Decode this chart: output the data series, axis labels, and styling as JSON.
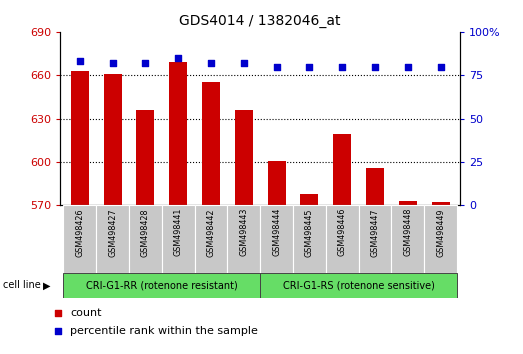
{
  "title": "GDS4014 / 1382046_at",
  "samples": [
    "GSM498426",
    "GSM498427",
    "GSM498428",
    "GSM498441",
    "GSM498442",
    "GSM498443",
    "GSM498444",
    "GSM498445",
    "GSM498446",
    "GSM498447",
    "GSM498448",
    "GSM498449"
  ],
  "bar_values": [
    663,
    661,
    636,
    669,
    655,
    636,
    601,
    578,
    619,
    596,
    573,
    572
  ],
  "percentile_values": [
    83,
    82,
    82,
    85,
    82,
    82,
    80,
    80,
    80,
    80,
    80,
    80
  ],
  "ylim_left": [
    570,
    690
  ],
  "ylim_right": [
    0,
    100
  ],
  "yticks_left": [
    570,
    600,
    630,
    660,
    690
  ],
  "yticks_right": [
    0,
    25,
    50,
    75,
    100
  ],
  "bar_color": "#cc0000",
  "dot_color": "#0000cc",
  "cell_line_bg": "#66dd66",
  "tick_area_bg": "#c8c8c8",
  "group1_label": "CRI-G1-RR (rotenone resistant)",
  "group2_label": "CRI-G1-RS (rotenone sensitive)",
  "group1_count": 6,
  "group2_count": 6,
  "legend_count_label": "count",
  "legend_pct_label": "percentile rank within the sample",
  "cell_line_text": "cell line",
  "title_fontsize": 10,
  "axis_fontsize": 8,
  "label_fontsize": 7,
  "legend_fontsize": 8
}
